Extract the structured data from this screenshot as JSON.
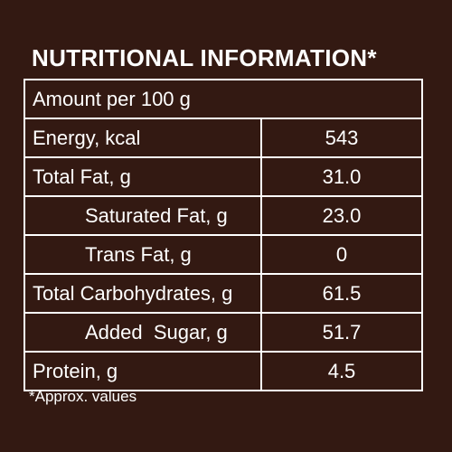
{
  "title": "NUTRITIONAL INFORMATION*",
  "amount_header": "Amount per 100 g",
  "rows": [
    {
      "label": "Energy, kcal",
      "value": "543"
    },
    {
      "label": "Total Fat, g",
      "value": "31.0"
    },
    {
      "label": "Saturated Fat, g",
      "value": "23.0"
    },
    {
      "label": "Trans Fat, g",
      "value": "0"
    },
    {
      "label": "Total Carbohydrates, g",
      "value": "61.5"
    },
    {
      "label": "Added  Sugar, g",
      "value": "51.7"
    },
    {
      "label": "Protein, g",
      "value": "4.5"
    }
  ],
  "footnote": "*Approx. values",
  "colors": {
    "background": "#331912",
    "text": "#ffffff",
    "border": "#ffffff"
  }
}
